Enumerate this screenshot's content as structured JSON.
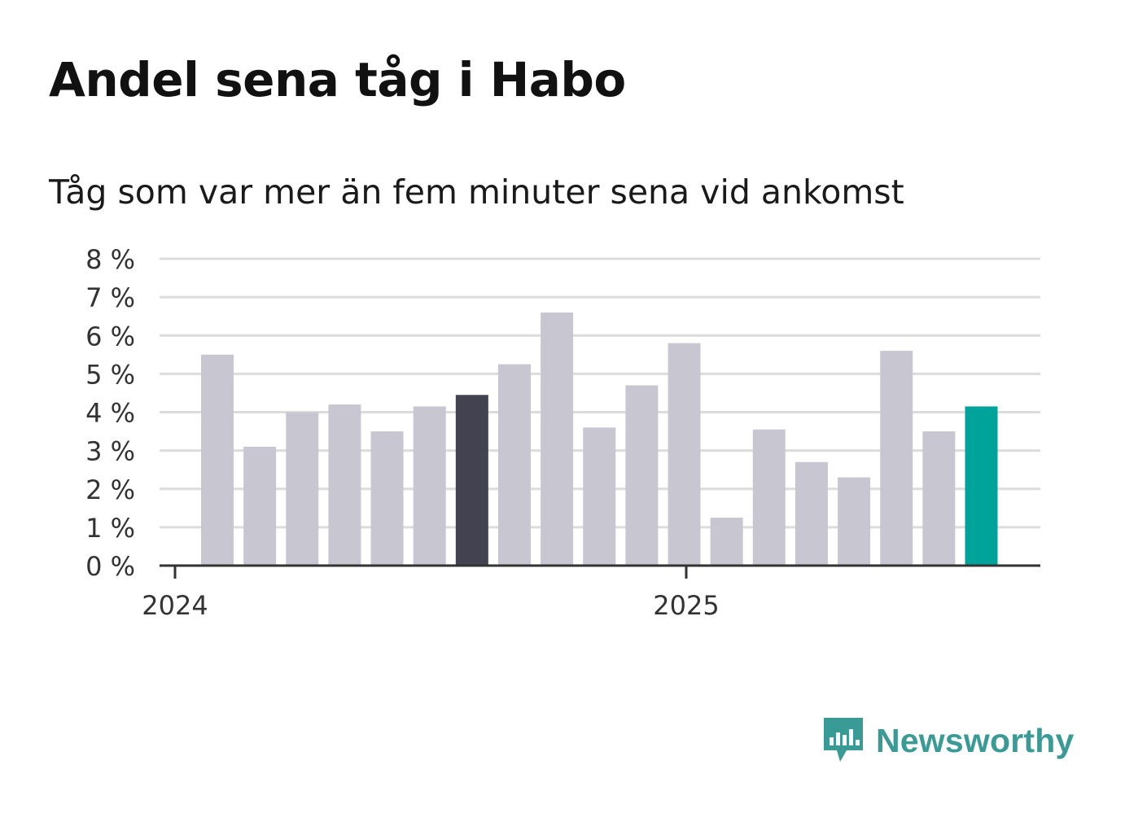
{
  "chart_data": {
    "type": "bar",
    "title": "Andel sena tåg i Habo",
    "subtitle": "Tåg som var mer än fem minuter sena vid ankomst",
    "y_ticks": [
      "0 %",
      "1 %",
      "2 %",
      "3 %",
      "4 %",
      "5 %",
      "6 %",
      "7 %",
      "8 %"
    ],
    "ylim": [
      0,
      8
    ],
    "x_ticks": [
      "2024",
      "2025"
    ],
    "grid": true,
    "values": [
      5.5,
      3.1,
      4.0,
      4.2,
      3.5,
      4.15,
      4.45,
      5.25,
      6.6,
      3.6,
      4.7,
      5.8,
      1.25,
      3.55,
      2.7,
      2.3,
      5.6,
      3.5,
      4.15
    ],
    "bar_color": "#c8c7d1",
    "highlight_last_year_color": "#424250",
    "highlight_latest_color": "#00a39a",
    "highlight_last_year_index": 6,
    "highlight_latest_index": 18
  },
  "brand": {
    "name": "Newsworthy",
    "icon": "newsworthy-logo-icon",
    "color": "#3a9a95"
  }
}
